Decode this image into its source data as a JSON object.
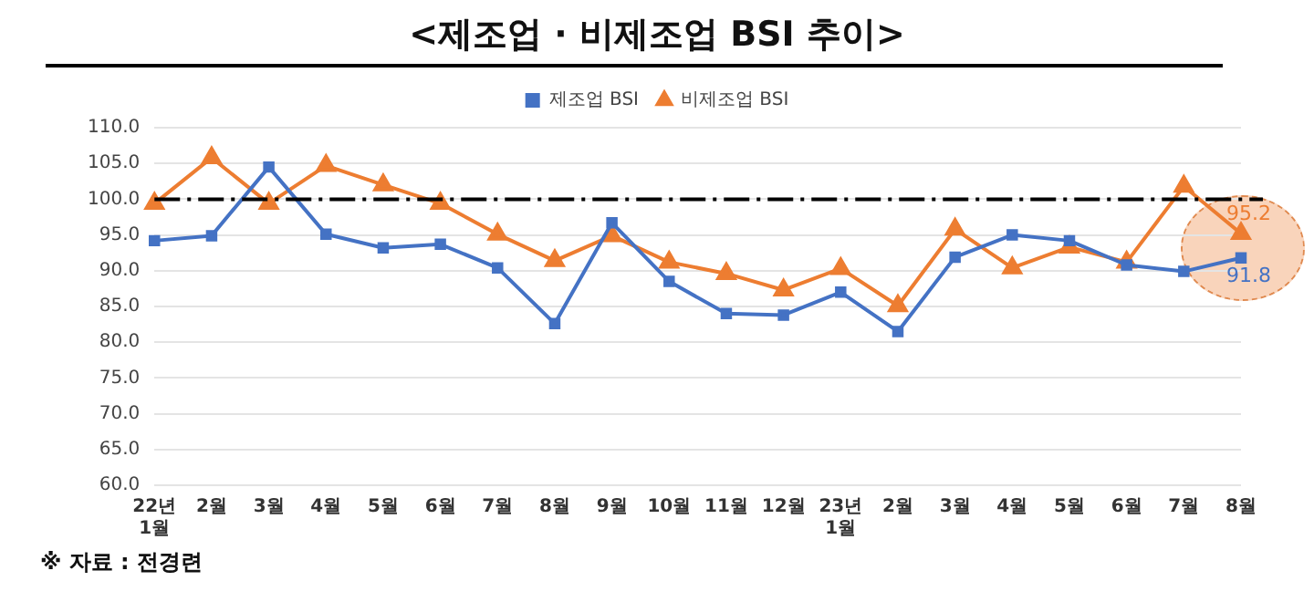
{
  "chart_data": {
    "type": "line",
    "title": "<제조업 · 비제조업 BSI 추이>",
    "categories": [
      "22년\n1월",
      "2월",
      "3월",
      "4월",
      "5월",
      "6월",
      "7월",
      "8월",
      "9월",
      "10월",
      "11월",
      "12월",
      "23년\n1월",
      "2월",
      "3월",
      "4월",
      "5월",
      "6월",
      "7월",
      "8월"
    ],
    "series": [
      {
        "name": "제조업 BSI",
        "color": "#4472c4",
        "marker": "square",
        "values": [
          94.2,
          94.9,
          104.5,
          95.1,
          93.2,
          93.7,
          90.4,
          82.6,
          96.7,
          88.5,
          84.0,
          83.8,
          87.0,
          81.5,
          91.9,
          95.0,
          94.2,
          90.8,
          89.9,
          91.8
        ],
        "value_labels": [
          null,
          null,
          null,
          null,
          null,
          null,
          null,
          null,
          null,
          null,
          null,
          null,
          null,
          null,
          null,
          null,
          null,
          null,
          null,
          "91.8"
        ]
      },
      {
        "name": "비제조업 BSI",
        "color": "#ed7d31",
        "marker": "triangle",
        "values": [
          99.4,
          105.8,
          99.4,
          104.7,
          102.0,
          99.4,
          95.1,
          91.4,
          94.9,
          91.2,
          89.6,
          87.3,
          90.3,
          85.1,
          95.8,
          90.4,
          93.3,
          91.2,
          101.8,
          95.2
        ],
        "value_labels": [
          null,
          null,
          null,
          null,
          null,
          null,
          null,
          null,
          null,
          null,
          null,
          null,
          null,
          null,
          null,
          null,
          null,
          null,
          null,
          "95.2"
        ]
      }
    ],
    "ylim": [
      60,
      110
    ],
    "yticks": [
      {
        "value": 60,
        "label": "60.0"
      },
      {
        "value": 65,
        "label": "65.0"
      },
      {
        "value": 70,
        "label": "70.0"
      },
      {
        "value": 75,
        "label": "75.0"
      },
      {
        "value": 80,
        "label": "80.0"
      },
      {
        "value": 85,
        "label": "85.0"
      },
      {
        "value": 90,
        "label": "90.0"
      },
      {
        "value": 95,
        "label": "95.0"
      },
      {
        "value": 100,
        "label": "100.0"
      },
      {
        "value": 105,
        "label": "105.0"
      },
      {
        "value": 110,
        "label": "110.0"
      }
    ],
    "grid": "y",
    "legend": "top",
    "ref_lines": [
      {
        "axis": "y",
        "value": 100,
        "color": "#000000",
        "line_style": "dashdot"
      }
    ],
    "annotations": [
      "※ 자료 : 전경련"
    ]
  }
}
